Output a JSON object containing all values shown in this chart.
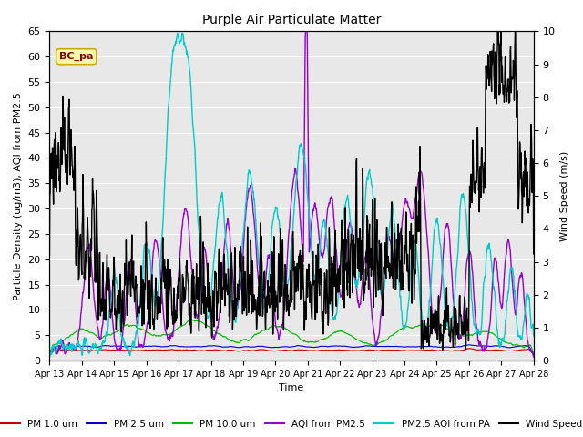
{
  "title": "Purple Air Particulate Matter",
  "xlabel": "Time",
  "ylabel_left": "Particle Density (ug/m3), AQI from PM2.5",
  "ylabel_right": "Wind Speed (m/s)",
  "ylim_left": [
    0,
    65
  ],
  "ylim_right": [
    0.0,
    10.0
  ],
  "yticks_left": [
    0,
    5,
    10,
    15,
    20,
    25,
    30,
    35,
    40,
    45,
    50,
    55,
    60,
    65
  ],
  "yticks_right": [
    0.0,
    1.0,
    2.0,
    3.0,
    4.0,
    5.0,
    6.0,
    7.0,
    8.0,
    9.0,
    10.0
  ],
  "xtick_labels": [
    "Apr 13",
    "Apr 14",
    "Apr 15",
    "Apr 16",
    "Apr 17",
    "Apr 18",
    "Apr 19",
    "Apr 20",
    "Apr 21",
    "Apr 22",
    "Apr 23",
    "Apr 24",
    "Apr 25",
    "Apr 26",
    "Apr 27",
    "Apr 28"
  ],
  "colors": {
    "pm1": "#cc0000",
    "pm25": "#0000cc",
    "pm10": "#00bb00",
    "aqi_pm25": "#9900cc",
    "pm25_pa": "#00cccc",
    "wind": "#000000"
  },
  "legend_labels": [
    "PM 1.0 um",
    "PM 2.5 um",
    "PM 10.0 um",
    "AQI from PM2.5",
    "PM2.5 AQI from PA",
    "Wind Speed"
  ],
  "annotation_text": "BC_pa",
  "fig_bg": "#ffffff",
  "plot_bg": "#e8e8e8"
}
